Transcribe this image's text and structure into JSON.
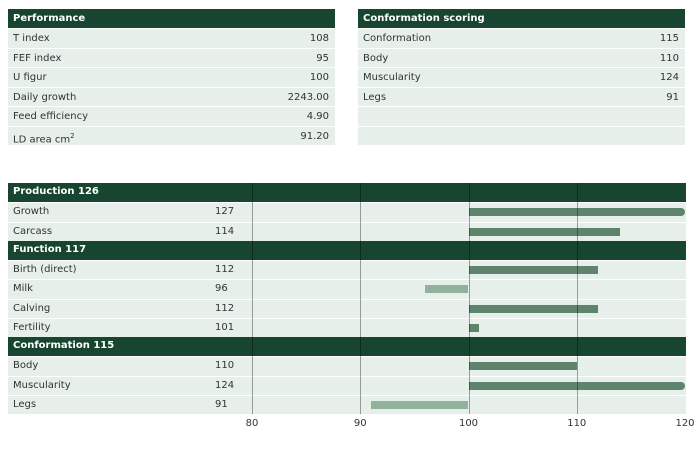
{
  "performance": {
    "title": "Performance",
    "rows": [
      {
        "label": "T index",
        "value": "108"
      },
      {
        "label": "FEF index",
        "value": "95"
      },
      {
        "label": "U figur",
        "value": "100"
      },
      {
        "label": "Daily growth",
        "value": "2243.00"
      },
      {
        "label": "Feed efficiency",
        "value": "4.90"
      },
      {
        "label": "LD area cm",
        "sup": "2",
        "value": "91.20"
      }
    ]
  },
  "conformation_scoring": {
    "title": "Conformation scoring",
    "rows": [
      {
        "label": "Conformation",
        "value": "115"
      },
      {
        "label": "Body",
        "value": "110"
      },
      {
        "label": "Muscularity",
        "value": "124"
      },
      {
        "label": "Legs",
        "value": "91"
      },
      {
        "label": "",
        "value": ""
      },
      {
        "label": "",
        "value": ""
      }
    ]
  },
  "chart_data": {
    "type": "bar",
    "orientation": "horizontal",
    "baseline": 100,
    "xlim": [
      80,
      120
    ],
    "ticks": [
      "80",
      "90",
      "100",
      "110",
      "120"
    ],
    "groups": [
      {
        "title": "Production 126",
        "items": [
          {
            "label": "Growth",
            "value": 127
          },
          {
            "label": "Carcass",
            "value": 114
          }
        ]
      },
      {
        "title": "Function 117",
        "items": [
          {
            "label": "Birth (direct)",
            "value": 112
          },
          {
            "label": "Milk",
            "value": 96
          },
          {
            "label": "Calving",
            "value": 112
          },
          {
            "label": "Fertility",
            "value": 101
          }
        ]
      },
      {
        "title": "Conformation 115",
        "items": [
          {
            "label": "Body",
            "value": 110
          },
          {
            "label": "Muscularity",
            "value": 124
          },
          {
            "label": "Legs",
            "value": 91
          }
        ]
      }
    ]
  },
  "colors": {
    "header": "#17452f",
    "row": "#e6efe9",
    "bar_pos": "#5e846d",
    "bar_neg": "#93b29b"
  }
}
